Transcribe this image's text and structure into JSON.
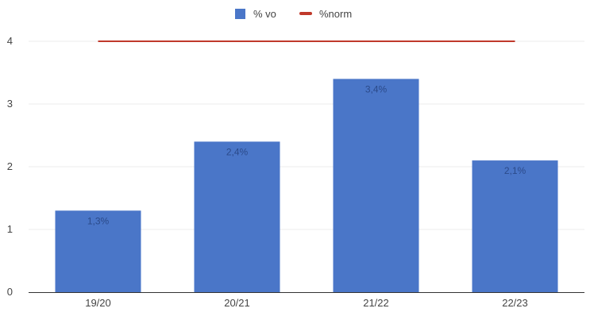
{
  "chart_data": {
    "type": "bar",
    "categories": [
      "19/20",
      "20/21",
      "21/22",
      "22/23"
    ],
    "series": [
      {
        "name": "% vo",
        "values": [
          1.3,
          2.4,
          3.4,
          2.1
        ],
        "data_labels": [
          "1,3%",
          "2,4%",
          "3,4%",
          "2,1%"
        ],
        "color": "#4a76c8"
      },
      {
        "name": "%norm",
        "values": [
          4,
          4,
          4,
          4
        ],
        "color": "#c0392b",
        "render_as": "line"
      }
    ],
    "y_ticks": [
      "0",
      "1",
      "2",
      "3",
      "4"
    ],
    "ylim": [
      0,
      4
    ],
    "grid": true,
    "legend_position": "top-center",
    "title": "",
    "xlabel": "",
    "ylabel": ""
  }
}
